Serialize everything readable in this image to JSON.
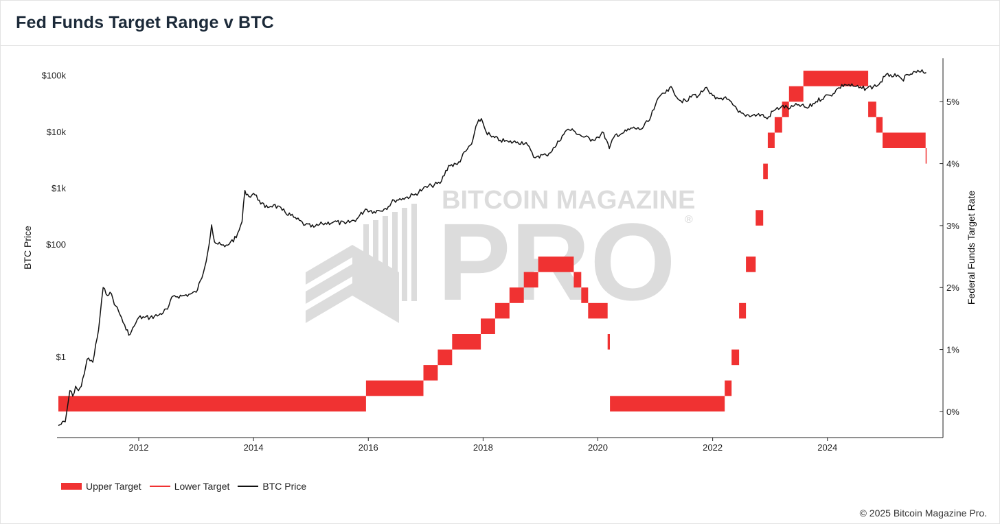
{
  "title": "Fed Funds Target Range v BTC",
  "footer": "© 2025 Bitcoin Magazine Pro.",
  "watermark": {
    "line1": "BITCOIN MAGAZINE",
    "line2": "PRO",
    "reg": "®"
  },
  "legend": {
    "upper": "Upper Target",
    "lower": "Lower Target",
    "btc": "BTC Price"
  },
  "colors": {
    "fed_fill": "#f03232",
    "btc_line": "#111111",
    "axis": "#222222",
    "watermark": "#dcdcdc"
  },
  "chart_data": {
    "type": "line",
    "title": "Fed Funds Target Range v BTC",
    "x_ticks": [
      "2012",
      "2014",
      "2016",
      "2018",
      "2020",
      "2022",
      "2024"
    ],
    "x_range": [
      2010.6,
      2025.75
    ],
    "left_axis": {
      "label": "BTC Price",
      "scale": "log",
      "range": [
        0.05,
        200000
      ],
      "ticks": [
        {
          "value": 1,
          "label": "$1"
        },
        {
          "value": 100,
          "label": "$100"
        },
        {
          "value": 1000,
          "label": "$1k"
        },
        {
          "value": 10000,
          "label": "$10k"
        },
        {
          "value": 100000,
          "label": "$100k"
        }
      ]
    },
    "right_axis": {
      "label": "Federal Funds Target Rate",
      "unit": "%",
      "range": [
        -0.3,
        5.7
      ],
      "ticks": [
        "0%",
        "1%",
        "2%",
        "3%",
        "4%",
        "5%"
      ],
      "tick_values": [
        0,
        1,
        2,
        3,
        4,
        5
      ]
    },
    "fed_range": [
      {
        "start": 2010.6,
        "end": 2015.96,
        "lower": 0.0,
        "upper": 0.25
      },
      {
        "start": 2015.96,
        "end": 2016.96,
        "lower": 0.25,
        "upper": 0.5
      },
      {
        "start": 2016.96,
        "end": 2017.21,
        "lower": 0.5,
        "upper": 0.75
      },
      {
        "start": 2017.21,
        "end": 2017.46,
        "lower": 0.75,
        "upper": 1.0
      },
      {
        "start": 2017.46,
        "end": 2017.96,
        "lower": 1.0,
        "upper": 1.25
      },
      {
        "start": 2017.96,
        "end": 2018.21,
        "lower": 1.25,
        "upper": 1.5
      },
      {
        "start": 2018.21,
        "end": 2018.46,
        "lower": 1.5,
        "upper": 1.75
      },
      {
        "start": 2018.46,
        "end": 2018.71,
        "lower": 1.75,
        "upper": 2.0
      },
      {
        "start": 2018.71,
        "end": 2018.96,
        "lower": 2.0,
        "upper": 2.25
      },
      {
        "start": 2018.96,
        "end": 2019.58,
        "lower": 2.25,
        "upper": 2.5
      },
      {
        "start": 2019.58,
        "end": 2019.71,
        "lower": 2.0,
        "upper": 2.25
      },
      {
        "start": 2019.71,
        "end": 2019.83,
        "lower": 1.75,
        "upper": 2.0
      },
      {
        "start": 2019.83,
        "end": 2020.17,
        "lower": 1.5,
        "upper": 1.75
      },
      {
        "start": 2020.17,
        "end": 2020.21,
        "lower": 1.0,
        "upper": 1.25
      },
      {
        "start": 2020.21,
        "end": 2022.21,
        "lower": 0.0,
        "upper": 0.25
      },
      {
        "start": 2022.21,
        "end": 2022.33,
        "lower": 0.25,
        "upper": 0.5
      },
      {
        "start": 2022.33,
        "end": 2022.46,
        "lower": 0.75,
        "upper": 1.0
      },
      {
        "start": 2022.46,
        "end": 2022.58,
        "lower": 1.5,
        "upper": 1.75
      },
      {
        "start": 2022.58,
        "end": 2022.75,
        "lower": 2.25,
        "upper": 2.5
      },
      {
        "start": 2022.75,
        "end": 2022.88,
        "lower": 3.0,
        "upper": 3.25
      },
      {
        "start": 2022.88,
        "end": 2022.96,
        "lower": 3.75,
        "upper": 4.0
      },
      {
        "start": 2022.96,
        "end": 2023.08,
        "lower": 4.25,
        "upper": 4.5
      },
      {
        "start": 2023.08,
        "end": 2023.21,
        "lower": 4.5,
        "upper": 4.75
      },
      {
        "start": 2023.21,
        "end": 2023.33,
        "lower": 4.75,
        "upper": 5.0
      },
      {
        "start": 2023.33,
        "end": 2023.58,
        "lower": 5.0,
        "upper": 5.25
      },
      {
        "start": 2023.58,
        "end": 2024.71,
        "lower": 5.25,
        "upper": 5.5
      },
      {
        "start": 2024.71,
        "end": 2024.85,
        "lower": 4.75,
        "upper": 5.0
      },
      {
        "start": 2024.85,
        "end": 2024.96,
        "lower": 4.5,
        "upper": 4.75
      },
      {
        "start": 2024.96,
        "end": 2025.71,
        "lower": 4.25,
        "upper": 4.5
      },
      {
        "start": 2025.71,
        "end": 2025.72,
        "lower": 4.0,
        "upper": 4.25
      }
    ],
    "btc_price": {
      "x": [
        2010.6,
        2010.72,
        2010.8,
        2010.85,
        2010.9,
        2010.95,
        2011.0,
        2011.1,
        2011.2,
        2011.3,
        2011.38,
        2011.43,
        2011.5,
        2011.6,
        2011.7,
        2011.78,
        2011.85,
        2011.92,
        2012.0,
        2012.1,
        2012.2,
        2012.35,
        2012.5,
        2012.6,
        2012.75,
        2012.9,
        2013.0,
        2013.1,
        2013.2,
        2013.27,
        2013.32,
        2013.38,
        2013.5,
        2013.6,
        2013.7,
        2013.8,
        2013.85,
        2013.92,
        2014.0,
        2014.1,
        2014.2,
        2014.35,
        2014.5,
        2014.7,
        2014.9,
        2015.05,
        2015.2,
        2015.4,
        2015.6,
        2015.8,
        2015.95,
        2016.1,
        2016.3,
        2016.45,
        2016.6,
        2016.8,
        2016.95,
        2017.1,
        2017.25,
        2017.4,
        2017.55,
        2017.7,
        2017.8,
        2017.9,
        2017.97,
        2018.05,
        2018.15,
        2018.3,
        2018.45,
        2018.6,
        2018.75,
        2018.88,
        2018.96,
        2019.1,
        2019.25,
        2019.38,
        2019.48,
        2019.6,
        2019.75,
        2019.9,
        2020.0,
        2020.1,
        2020.2,
        2020.3,
        2020.45,
        2020.6,
        2020.75,
        2020.9,
        2021.0,
        2021.1,
        2021.2,
        2021.3,
        2021.42,
        2021.55,
        2021.65,
        2021.75,
        2021.87,
        2021.95,
        2022.05,
        2022.2,
        2022.35,
        2022.45,
        2022.55,
        2022.7,
        2022.85,
        2022.95,
        2023.05,
        2023.2,
        2023.35,
        2023.5,
        2023.65,
        2023.8,
        2023.95,
        2024.05,
        2024.2,
        2024.3,
        2024.45,
        2024.6,
        2024.7,
        2024.8,
        2024.9,
        2025.0,
        2025.1,
        2025.2,
        2025.3,
        2025.45,
        2025.6,
        2025.72
      ],
      "y": [
        0.06,
        0.07,
        0.25,
        0.2,
        0.3,
        0.25,
        0.3,
        0.9,
        0.8,
        3,
        17,
        13,
        14,
        8,
        5,
        3,
        2.5,
        3.5,
        5,
        5,
        5,
        5.5,
        7,
        12,
        12,
        13,
        14,
        25,
        70,
        220,
        110,
        100,
        90,
        110,
        130,
        250,
        900,
        700,
        800,
        600,
        450,
        500,
        400,
        300,
        220,
        200,
        230,
        250,
        230,
        280,
        420,
        380,
        430,
        600,
        650,
        750,
        950,
        1100,
        1200,
        2500,
        2600,
        4500,
        6000,
        14000,
        17000,
        10000,
        8000,
        7000,
        6500,
        6500,
        6400,
        3500,
        3700,
        3800,
        5200,
        8500,
        11000,
        10000,
        8000,
        7200,
        8000,
        9500,
        5000,
        8700,
        9500,
        11500,
        11000,
        16000,
        29000,
        45000,
        55000,
        58000,
        36000,
        34000,
        45000,
        43000,
        60000,
        47000,
        38000,
        40000,
        30000,
        22000,
        20000,
        19500,
        20000,
        16800,
        23000,
        28000,
        26000,
        30000,
        26000,
        34000,
        42000,
        44000,
        60000,
        69000,
        64000,
        58000,
        60000,
        63000,
        69000,
        95000,
        102000,
        95000,
        84000,
        105000,
        115000,
        112000
      ]
    }
  }
}
